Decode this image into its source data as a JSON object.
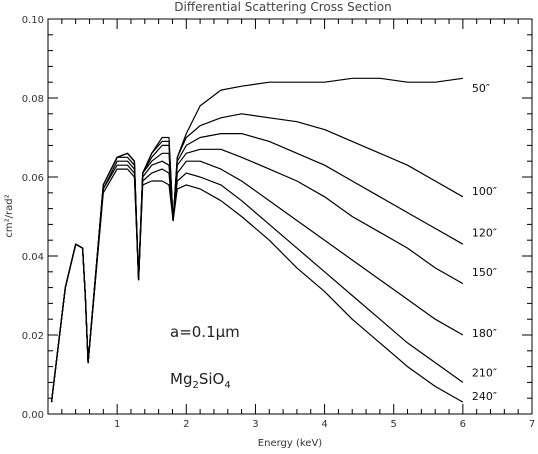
{
  "chart_data": {
    "type": "line",
    "title": "Differential Scattering Cross Section",
    "xlabel": "Energy (keV)",
    "ylabel": "cm²/rad²",
    "xlim": [
      0,
      7
    ],
    "ylim": [
      0,
      0.1
    ],
    "x_ticks": [
      1,
      2,
      3,
      4,
      5,
      6,
      7
    ],
    "x_tick_labels": [
      "1",
      "2",
      "3",
      "4",
      "5",
      "6",
      "7"
    ],
    "y_ticks": [
      0.0,
      0.02,
      0.04,
      0.06,
      0.08,
      0.1
    ],
    "y_tick_labels": [
      "0.00",
      "0.02",
      "0.04",
      "0.06",
      "0.08",
      "0.10"
    ],
    "grid": false,
    "annotations": {
      "size": "a=0.1μm",
      "composition_base": "Mg",
      "composition_sub1": "2",
      "composition_mid": "SiO",
      "composition_sub2": "4"
    },
    "series": [
      {
        "name": "50″",
        "label_y": 0.0825,
        "x": [
          0.05,
          0.25,
          0.4,
          0.5,
          0.54,
          0.58,
          0.8,
          1.0,
          1.15,
          1.25,
          1.31,
          1.37,
          1.5,
          1.65,
          1.75,
          1.81,
          1.87,
          2.0,
          2.2,
          2.5,
          2.8,
          3.2,
          3.6,
          4.0,
          4.4,
          4.8,
          5.2,
          5.6,
          6.0
        ],
        "y": [
          0.003,
          0.032,
          0.043,
          0.042,
          0.03,
          0.013,
          0.058,
          0.065,
          0.066,
          0.064,
          0.034,
          0.061,
          0.066,
          0.07,
          0.07,
          0.049,
          0.065,
          0.071,
          0.078,
          0.082,
          0.083,
          0.084,
          0.084,
          0.084,
          0.085,
          0.085,
          0.084,
          0.084,
          0.085
        ]
      },
      {
        "name": "100″",
        "label_y": 0.0565,
        "x": [
          0.05,
          0.25,
          0.4,
          0.5,
          0.54,
          0.58,
          0.8,
          1.0,
          1.15,
          1.25,
          1.31,
          1.37,
          1.5,
          1.65,
          1.75,
          1.81,
          1.87,
          2.0,
          2.2,
          2.5,
          2.8,
          3.2,
          3.6,
          4.0,
          4.4,
          4.8,
          5.2,
          5.6,
          6.0
        ],
        "y": [
          0.003,
          0.032,
          0.043,
          0.042,
          0.03,
          0.013,
          0.058,
          0.065,
          0.066,
          0.064,
          0.034,
          0.061,
          0.066,
          0.069,
          0.069,
          0.049,
          0.065,
          0.07,
          0.073,
          0.075,
          0.076,
          0.075,
          0.074,
          0.072,
          0.069,
          0.066,
          0.063,
          0.059,
          0.055
        ]
      },
      {
        "name": "120″",
        "label_y": 0.046,
        "x": [
          0.05,
          0.25,
          0.4,
          0.5,
          0.54,
          0.58,
          0.8,
          1.0,
          1.15,
          1.25,
          1.31,
          1.37,
          1.5,
          1.65,
          1.75,
          1.81,
          1.87,
          2.0,
          2.2,
          2.5,
          2.8,
          3.2,
          3.6,
          4.0,
          4.4,
          4.8,
          5.2,
          5.6,
          6.0
        ],
        "y": [
          0.003,
          0.032,
          0.043,
          0.042,
          0.03,
          0.013,
          0.058,
          0.065,
          0.066,
          0.064,
          0.034,
          0.061,
          0.065,
          0.068,
          0.068,
          0.049,
          0.064,
          0.068,
          0.07,
          0.071,
          0.071,
          0.069,
          0.066,
          0.063,
          0.059,
          0.055,
          0.051,
          0.047,
          0.043
        ]
      },
      {
        "name": "150″",
        "label_y": 0.036,
        "x": [
          0.05,
          0.25,
          0.4,
          0.5,
          0.54,
          0.58,
          0.8,
          1.0,
          1.15,
          1.25,
          1.31,
          1.37,
          1.5,
          1.65,
          1.75,
          1.81,
          1.87,
          2.0,
          2.2,
          2.5,
          2.8,
          3.2,
          3.6,
          4.0,
          4.4,
          4.8,
          5.2,
          5.6,
          6.0
        ],
        "y": [
          0.003,
          0.032,
          0.043,
          0.042,
          0.03,
          0.013,
          0.058,
          0.065,
          0.065,
          0.063,
          0.034,
          0.061,
          0.064,
          0.066,
          0.066,
          0.049,
          0.063,
          0.066,
          0.067,
          0.067,
          0.065,
          0.062,
          0.059,
          0.055,
          0.05,
          0.046,
          0.042,
          0.037,
          0.033
        ]
      },
      {
        "name": "180″",
        "label_y": 0.0205,
        "x": [
          0.05,
          0.25,
          0.4,
          0.5,
          0.54,
          0.58,
          0.8,
          1.0,
          1.15,
          1.25,
          1.31,
          1.37,
          1.5,
          1.65,
          1.75,
          1.81,
          1.87,
          2.0,
          2.2,
          2.5,
          2.8,
          3.2,
          3.6,
          4.0,
          4.4,
          4.8,
          5.2,
          5.6,
          6.0
        ],
        "y": [
          0.003,
          0.032,
          0.043,
          0.042,
          0.03,
          0.013,
          0.057,
          0.064,
          0.064,
          0.062,
          0.034,
          0.06,
          0.063,
          0.064,
          0.063,
          0.049,
          0.061,
          0.064,
          0.064,
          0.062,
          0.059,
          0.054,
          0.049,
          0.044,
          0.039,
          0.034,
          0.029,
          0.024,
          0.02
        ]
      },
      {
        "name": "210″",
        "label_y": 0.0105,
        "x": [
          0.05,
          0.25,
          0.4,
          0.5,
          0.54,
          0.58,
          0.8,
          1.0,
          1.15,
          1.25,
          1.31,
          1.37,
          1.5,
          1.65,
          1.75,
          1.81,
          1.87,
          2.0,
          2.2,
          2.5,
          2.8,
          3.2,
          3.6,
          4.0,
          4.4,
          4.8,
          5.2,
          5.6,
          6.0
        ],
        "y": [
          0.003,
          0.032,
          0.043,
          0.042,
          0.03,
          0.013,
          0.057,
          0.063,
          0.063,
          0.061,
          0.034,
          0.059,
          0.061,
          0.062,
          0.061,
          0.049,
          0.059,
          0.061,
          0.06,
          0.058,
          0.054,
          0.048,
          0.042,
          0.036,
          0.03,
          0.024,
          0.018,
          0.013,
          0.008
        ]
      },
      {
        "name": "240″",
        "label_y": 0.0045,
        "x": [
          0.05,
          0.25,
          0.4,
          0.5,
          0.54,
          0.58,
          0.8,
          1.0,
          1.15,
          1.25,
          1.31,
          1.37,
          1.5,
          1.65,
          1.75,
          1.81,
          1.87,
          2.0,
          2.2,
          2.5,
          2.8,
          3.2,
          3.6,
          4.0,
          4.4,
          4.8,
          5.2,
          5.6,
          6.0
        ],
        "y": [
          0.003,
          0.032,
          0.043,
          0.042,
          0.03,
          0.013,
          0.056,
          0.062,
          0.062,
          0.06,
          0.034,
          0.058,
          0.059,
          0.059,
          0.058,
          0.049,
          0.057,
          0.058,
          0.057,
          0.054,
          0.05,
          0.044,
          0.037,
          0.031,
          0.024,
          0.018,
          0.012,
          0.007,
          0.003
        ]
      }
    ]
  }
}
